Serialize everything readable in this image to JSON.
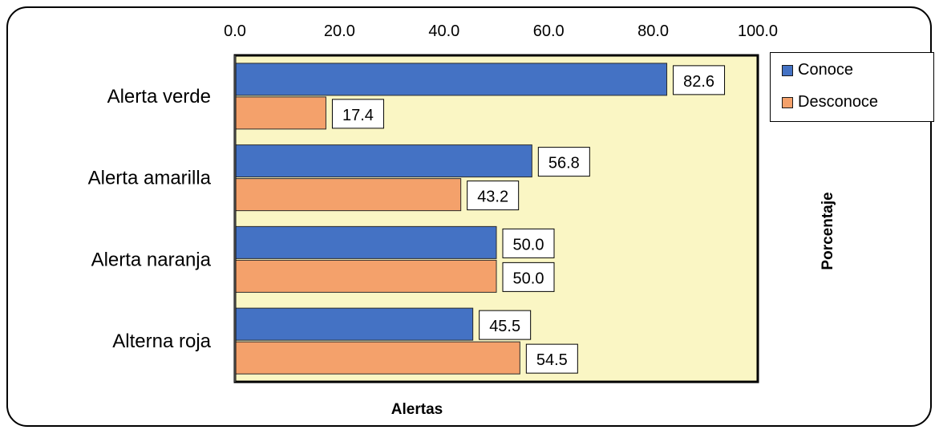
{
  "chart_data": {
    "type": "bar",
    "orientation": "horizontal",
    "categories": [
      "Alerta verde",
      "Alerta amarilla",
      "Alerta naranja",
      "Alterna roja"
    ],
    "series": [
      {
        "name": "Conoce",
        "values": [
          82.6,
          56.8,
          50.0,
          45.5
        ],
        "color": "#4472C4"
      },
      {
        "name": "Desconoce",
        "values": [
          17.4,
          43.2,
          50.0,
          54.5
        ],
        "color": "#F4A16B"
      }
    ],
    "xlim": [
      0,
      100
    ],
    "xticks": [
      "0.0",
      "20.0",
      "40.0",
      "60.0",
      "80.0",
      "100.0"
    ],
    "xlabel": "Alertas",
    "ylabel": "Porcentaje",
    "legend_position": "right",
    "plot_background": "#FAF6C4"
  }
}
